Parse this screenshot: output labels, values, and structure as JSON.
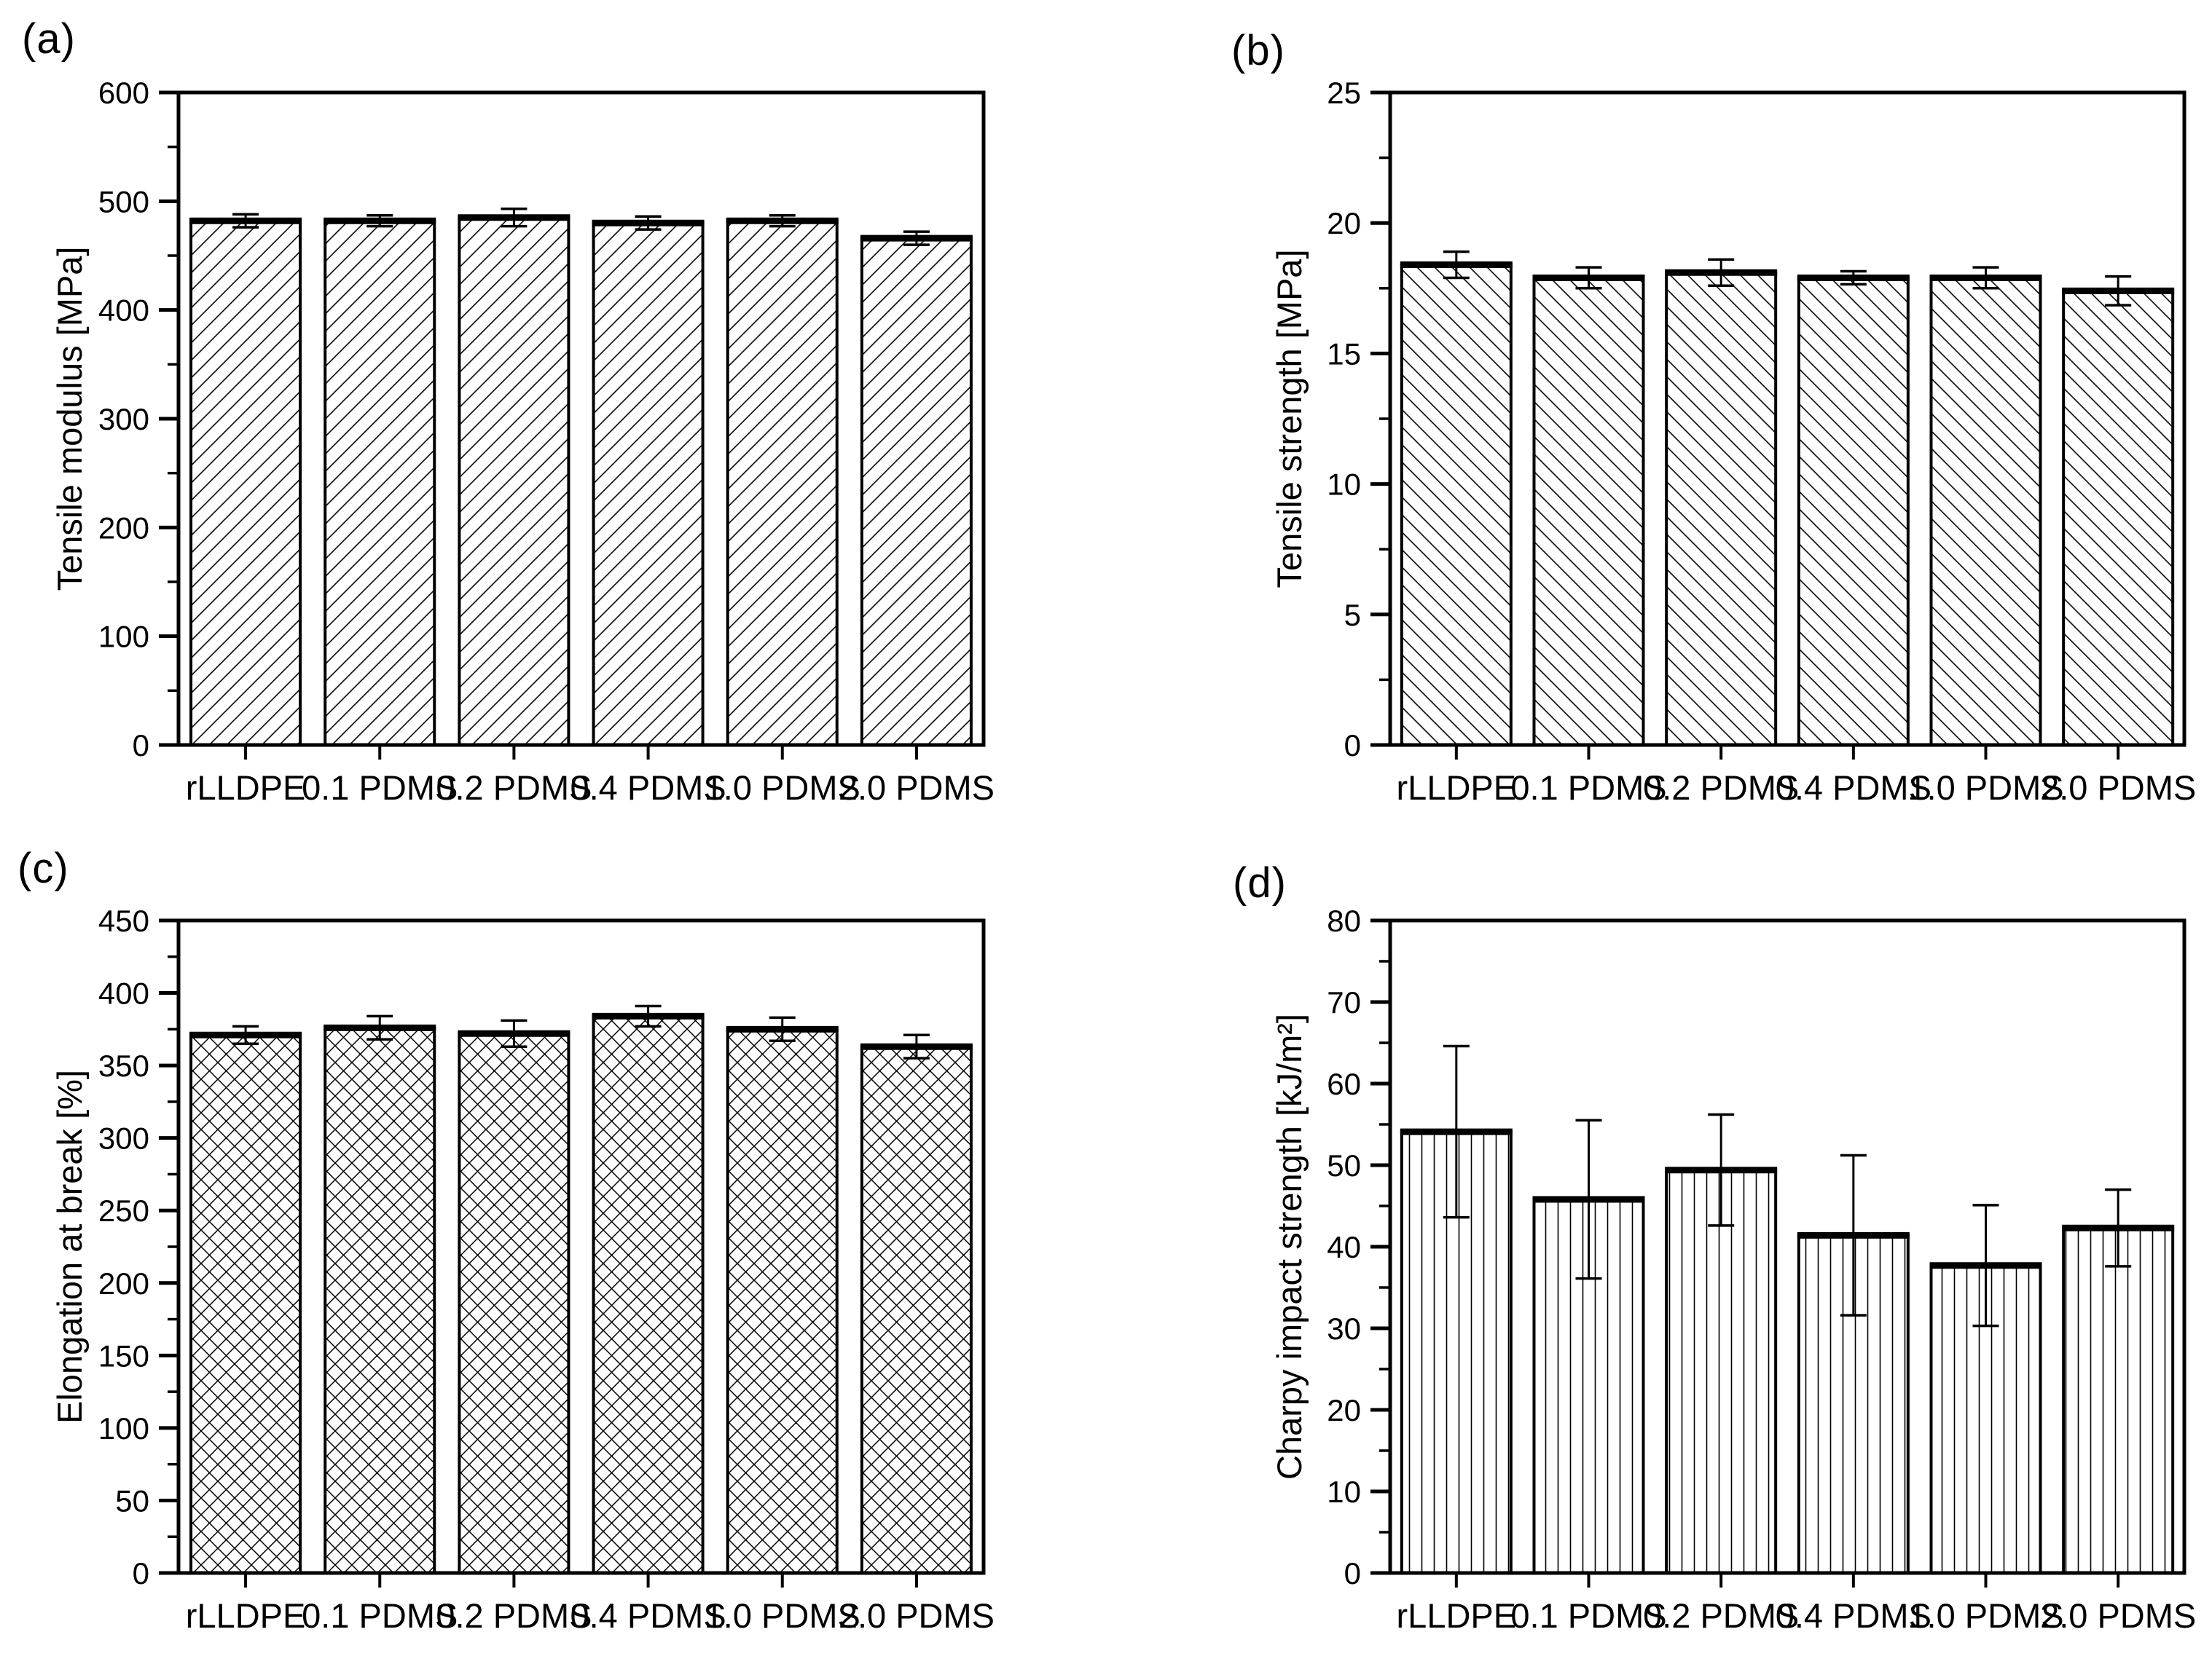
{
  "figure": {
    "background": "#ffffff",
    "ink_color": "#000000",
    "bar_fill": "#ffffff",
    "bar_edge": "#000000",
    "error_color": "#000000"
  },
  "chart_data": [
    {
      "type": "bar",
      "panel_label": "(a)",
      "title": "",
      "xlabel": "",
      "ylabel": "Tensile modulus [MPa]",
      "categories": [
        "rLLDPE",
        "0.1 PDMS",
        "0.2 PDMS",
        "0.4 PDMS",
        "1.0 PDMS",
        "2.0 PDMS"
      ],
      "values": [
        482,
        482,
        485,
        480,
        482,
        466
      ],
      "errors": [
        6,
        5,
        8,
        6,
        5,
        6
      ],
      "ylim": [
        0,
        600
      ],
      "ytick_step": 100,
      "yminor_step": 50,
      "ytick_labels": [
        "0",
        "100",
        "200",
        "300",
        "400",
        "500",
        "600"
      ],
      "hatch": "diagonal-up",
      "grid": false,
      "legend": "none"
    },
    {
      "type": "bar",
      "panel_label": "(b)",
      "title": "",
      "xlabel": "",
      "ylabel": "Tensile strength [MPa]",
      "categories": [
        "rLLDPE",
        "0.1 PDMS",
        "0.2 PDMS",
        "0.4 PDMS",
        "1.0 PDMS",
        "2.0 PDMS"
      ],
      "values": [
        18.4,
        17.9,
        18.1,
        17.9,
        17.9,
        17.4
      ],
      "errors": [
        0.5,
        0.4,
        0.5,
        0.25,
        0.4,
        0.55
      ],
      "ylim": [
        0,
        25
      ],
      "ytick_step": 5,
      "yminor_step": 2.5,
      "ytick_labels": [
        "0",
        "5",
        "10",
        "15",
        "20",
        "25"
      ],
      "hatch": "diagonal-down",
      "grid": false,
      "legend": "none"
    },
    {
      "type": "bar",
      "panel_label": "(c)",
      "title": "",
      "xlabel": "",
      "ylabel": "Elongation at break [%]",
      "categories": [
        "rLLDPE",
        "0.1 PDMS",
        "0.2 PDMS",
        "0.4 PDMS",
        "1.0 PDMS",
        "2.0 PDMS"
      ],
      "values": [
        371,
        376,
        372,
        384,
        375,
        363
      ],
      "errors": [
        6,
        8,
        9,
        7,
        8,
        8
      ],
      "ylim": [
        0,
        450
      ],
      "ytick_step": 50,
      "yminor_step": 25,
      "ytick_labels": [
        "0",
        "50",
        "100",
        "150",
        "200",
        "250",
        "300",
        "350",
        "400",
        "450"
      ],
      "hatch": "crosshatch",
      "grid": false,
      "legend": "none"
    },
    {
      "type": "bar",
      "panel_label": "(d)",
      "title": "",
      "xlabel": "",
      "ylabel": "Charpy impact strength [kJ/m²]",
      "categories": [
        "rLLDPE",
        "0.1 PDMS",
        "0.2 PDMS",
        "0.4 PDMS",
        "1.0 PDMS",
        "2.0 PDMS"
      ],
      "values": [
        54.1,
        45.8,
        49.4,
        41.4,
        37.7,
        42.3
      ],
      "errors": [
        10.5,
        9.7,
        6.8,
        9.8,
        7.4,
        4.7
      ],
      "ylim": [
        0,
        80
      ],
      "ytick_step": 10,
      "yminor_step": 5,
      "ytick_labels": [
        "0",
        "10",
        "20",
        "30",
        "40",
        "50",
        "60",
        "70",
        "80"
      ],
      "hatch": "vertical",
      "grid": false,
      "legend": "none"
    }
  ]
}
